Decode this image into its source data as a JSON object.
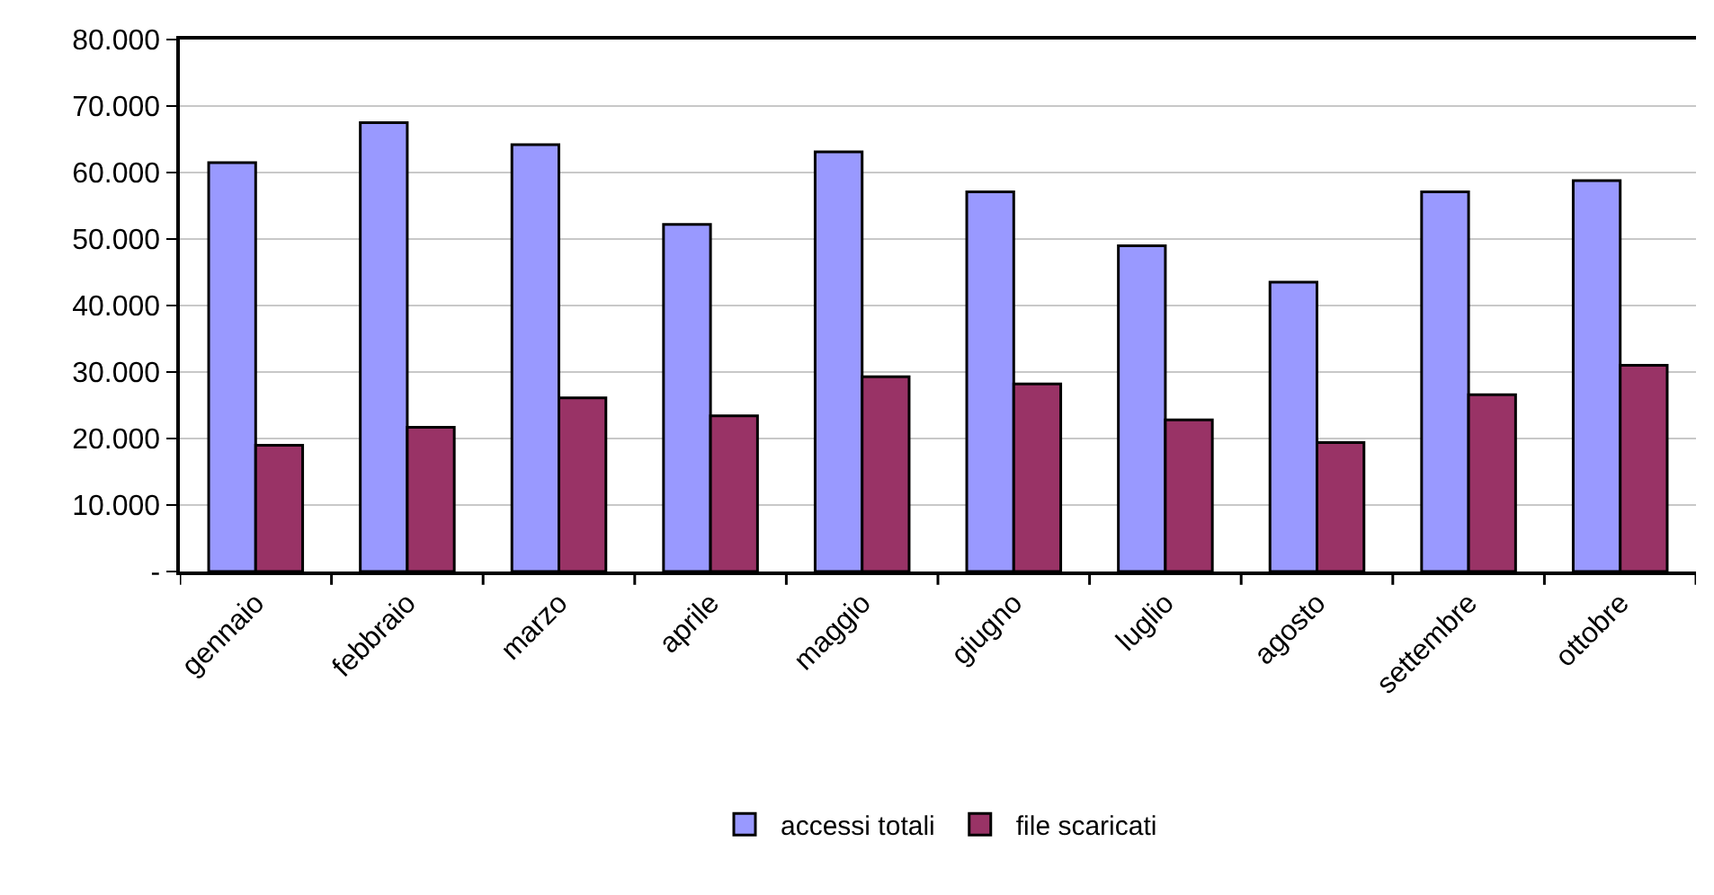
{
  "chart_data": {
    "type": "bar",
    "categories": [
      "gennaio",
      "febbraio",
      "marzo",
      "aprile",
      "maggio",
      "giugno",
      "luglio",
      "agosto",
      "settembre",
      "ottobre"
    ],
    "series": [
      {
        "name": "accessi totali",
        "color": "#9999ff",
        "values": [
          61500,
          67500,
          64200,
          52200,
          63100,
          57100,
          49000,
          43500,
          57100,
          58800
        ]
      },
      {
        "name": "file scaricati",
        "color": "#993366",
        "values": [
          19000,
          21700,
          26100,
          23400,
          29300,
          28200,
          22800,
          19400,
          26600,
          31000
        ]
      }
    ],
    "ylim": [
      0,
      80000
    ],
    "yticks": [
      {
        "value": 0,
        "label": "-"
      },
      {
        "value": 10000,
        "label": "10.000"
      },
      {
        "value": 20000,
        "label": "20.000"
      },
      {
        "value": 30000,
        "label": "30.000"
      },
      {
        "value": 40000,
        "label": "40.000"
      },
      {
        "value": 50000,
        "label": "50.000"
      },
      {
        "value": 60000,
        "label": "60.000"
      },
      {
        "value": 70000,
        "label": "70.000"
      },
      {
        "value": 80000,
        "label": "80.000"
      }
    ],
    "grid": "y",
    "legend": "bottom"
  }
}
